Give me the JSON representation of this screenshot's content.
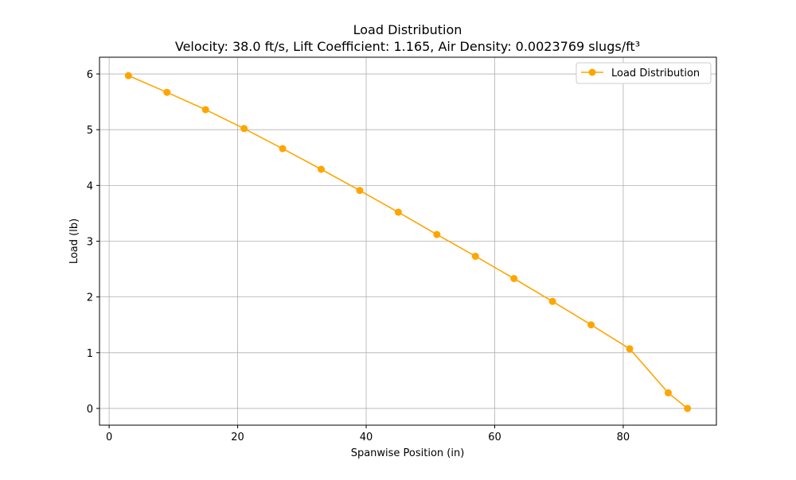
{
  "chart_data": {
    "type": "line",
    "title": "Load Distribution",
    "subtitle": "Velocity: 38.0 ft/s, Lift Coefficient: 1.165, Air Density: 0.0023769 slugs/ft³",
    "xlabel": "Spanwise Position (in)",
    "ylabel": "Load (lb)",
    "xlim": [
      -1.5,
      94.5
    ],
    "ylim": [
      -0.3,
      6.3
    ],
    "xticks": [
      0,
      20,
      40,
      60,
      80
    ],
    "yticks": [
      0,
      1,
      2,
      3,
      4,
      5,
      6
    ],
    "grid": true,
    "legend_position": "top-right",
    "series": [
      {
        "name": "Load Distribution",
        "color": "#FFA500",
        "marker": "circle",
        "x": [
          3,
          9,
          15,
          21,
          27,
          33,
          39,
          45,
          51,
          57,
          63,
          69,
          75,
          81,
          87,
          90
        ],
        "y": [
          5.97,
          5.67,
          5.36,
          5.02,
          4.66,
          4.29,
          3.91,
          3.52,
          3.12,
          2.73,
          2.33,
          1.92,
          1.5,
          1.07,
          0.28,
          0.0
        ]
      }
    ]
  }
}
